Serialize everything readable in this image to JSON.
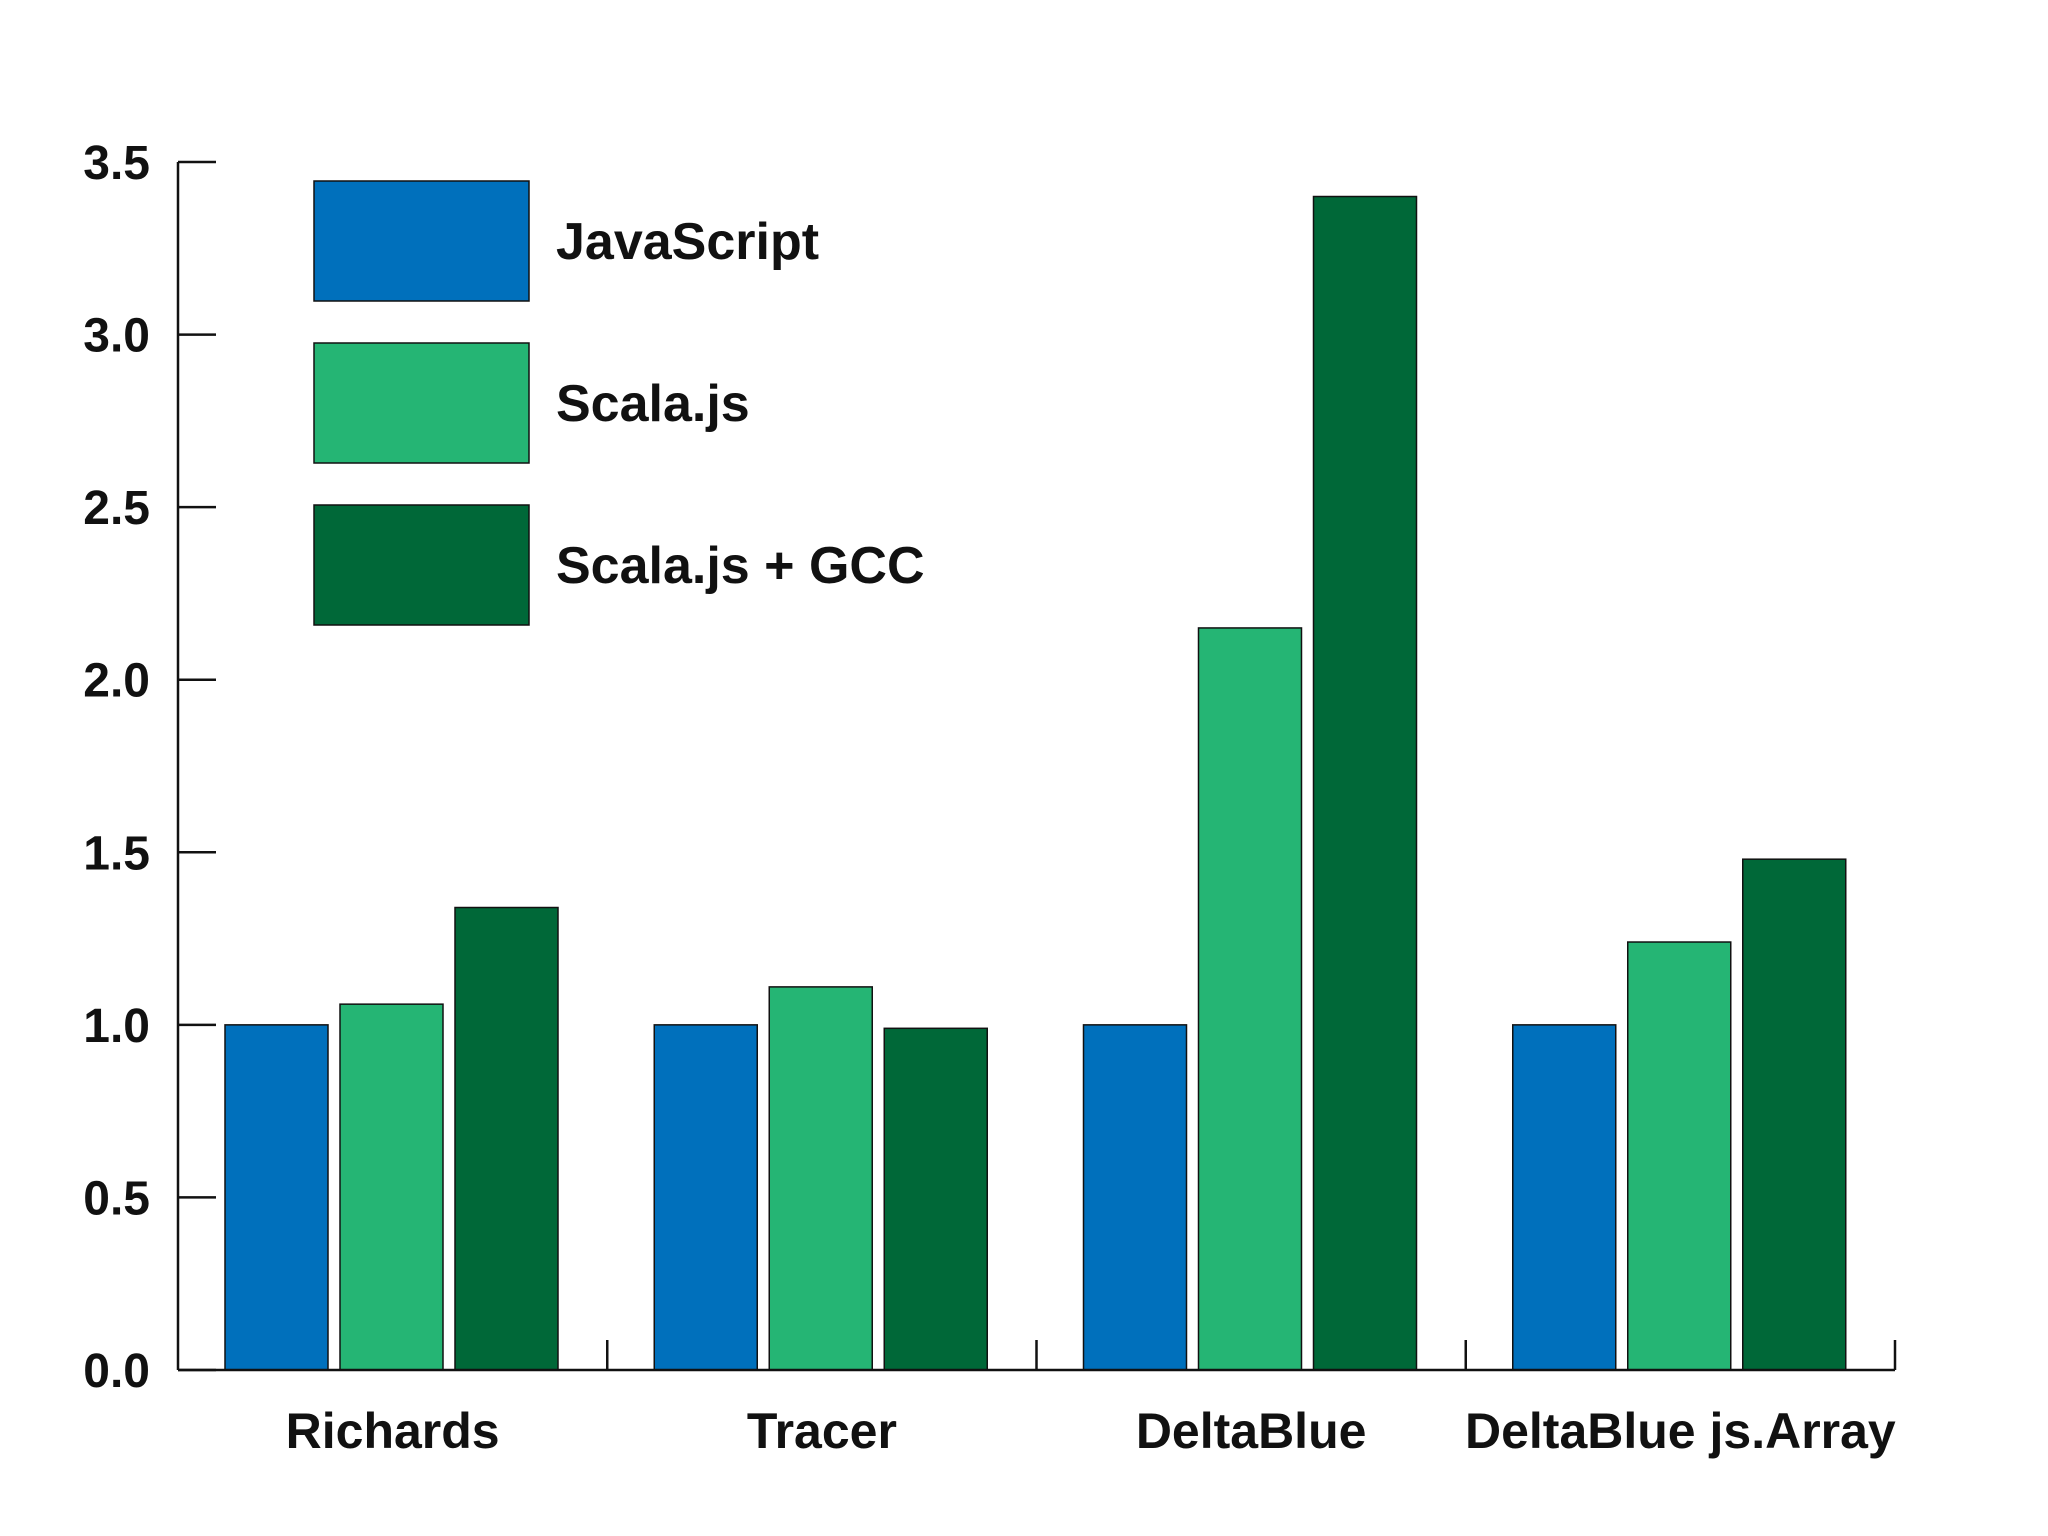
{
  "chart_data": {
    "type": "bar",
    "title": "",
    "xlabel": "",
    "ylabel": "",
    "ylim": [
      0,
      3.5
    ],
    "yticks": [
      "0.0",
      "0.5",
      "1.0",
      "1.5",
      "2.0",
      "2.5",
      "3.0",
      "3.5"
    ],
    "categories": [
      "Richards",
      "Tracer",
      "DeltaBlue",
      "DeltaBlue js.Array"
    ],
    "series": [
      {
        "name": "JavaScript",
        "color": "#0070bc",
        "values": [
          1.0,
          1.0,
          1.0,
          1.0
        ]
      },
      {
        "name": "Scala.js",
        "color": "#25b574",
        "values": [
          1.06,
          1.11,
          2.15,
          1.24
        ]
      },
      {
        "name": "Scala.js + GCC",
        "color": "#006838",
        "values": [
          1.34,
          0.99,
          3.4,
          1.48
        ]
      }
    ],
    "legend_position": "top-left",
    "grid": false
  }
}
